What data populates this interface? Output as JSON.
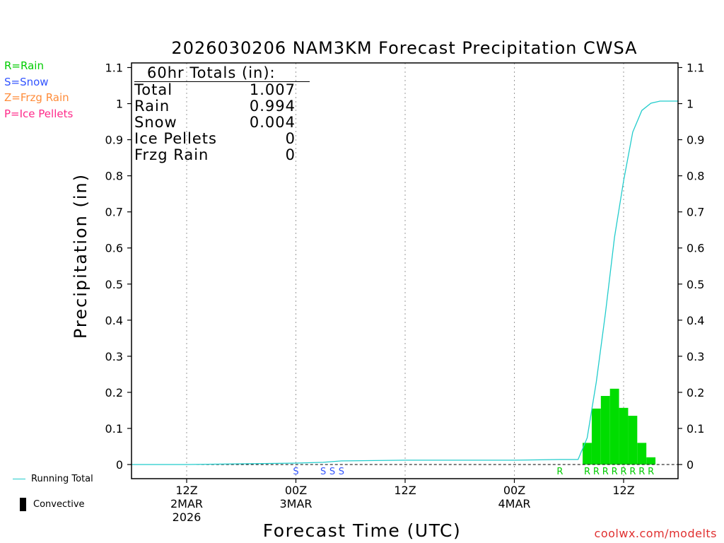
{
  "chart_data": {
    "type": "bar",
    "title": "2026030206 NAM3KM Forecast Precipitation CWSA",
    "xlabel": "Forecast Time (UTC)",
    "ylabel": "Precipitation (in)",
    "ylim": [
      0,
      1.1
    ],
    "yticks": [
      "0",
      "0.1",
      "0.2",
      "0.3",
      "0.4",
      "0.5",
      "0.6",
      "0.7",
      "0.8",
      "0.9",
      "1",
      "1.1"
    ],
    "x_range_hours": [
      -1,
      60
    ],
    "x_ticks": [
      {
        "hour": 6,
        "lines": [
          "12Z",
          "2MAR",
          "2026"
        ]
      },
      {
        "hour": 18,
        "lines": [
          "00Z",
          "3MAR"
        ]
      },
      {
        "hour": 30,
        "lines": [
          "12Z"
        ]
      },
      {
        "hour": 42,
        "lines": [
          "00Z",
          "4MAR"
        ]
      },
      {
        "hour": 54,
        "lines": [
          "12Z"
        ]
      }
    ],
    "bar_hours": [
      50,
      51,
      52,
      53,
      54,
      55,
      56,
      57
    ],
    "bar_values": [
      0.06,
      0.155,
      0.19,
      0.21,
      0.157,
      0.135,
      0.06,
      0.02
    ],
    "running_total": {
      "name": "Running Total",
      "hours": [
        0,
        6,
        12,
        18,
        21,
        23,
        30,
        36,
        42,
        47,
        49,
        50,
        51,
        52,
        53,
        54,
        55,
        56,
        57,
        58,
        60
      ],
      "values": [
        0,
        0,
        0.002,
        0.004,
        0.006,
        0.01,
        0.012,
        0.012,
        0.012,
        0.014,
        0.014,
        0.074,
        0.229,
        0.419,
        0.629,
        0.786,
        0.921,
        0.981,
        1.001,
        1.007,
        1.007
      ]
    },
    "ptype_markers": [
      {
        "hour": 18,
        "letter": "S",
        "type": "snow"
      },
      {
        "hour": 21,
        "letter": "S",
        "type": "snow"
      },
      {
        "hour": 22,
        "letter": "S",
        "type": "snow"
      },
      {
        "hour": 23,
        "letter": "S",
        "type": "snow"
      },
      {
        "hour": 47,
        "letter": "R",
        "type": "rain"
      },
      {
        "hour": 50,
        "letter": "R",
        "type": "rain"
      },
      {
        "hour": 51,
        "letter": "R",
        "type": "rain"
      },
      {
        "hour": 52,
        "letter": "R",
        "type": "rain"
      },
      {
        "hour": 53,
        "letter": "R",
        "type": "rain"
      },
      {
        "hour": 54,
        "letter": "R",
        "type": "rain"
      },
      {
        "hour": 55,
        "letter": "R",
        "type": "rain"
      },
      {
        "hour": 56,
        "letter": "R",
        "type": "rain"
      },
      {
        "hour": 57,
        "letter": "R",
        "type": "rain"
      }
    ],
    "colors": {
      "rain": "#00cc00",
      "snow": "#3355ff",
      "frzg": "#ff8c3a",
      "ice": "#ff2a8a",
      "bar": "#00dd00",
      "running_total": "#22cccc"
    }
  },
  "precip_legend": [
    {
      "label": "R=Rain",
      "color": "#00cc00"
    },
    {
      "label": "S=Snow",
      "color": "#3355ff"
    },
    {
      "label": "Z=Frzg Rain",
      "color": "#ff8c3a"
    },
    {
      "label": "P=Ice Pellets",
      "color": "#ff2a8a"
    }
  ],
  "totals": {
    "header": "60hr Totals (in):",
    "rows": [
      {
        "label": "Total",
        "value": "1.007"
      },
      {
        "label": "Rain",
        "value": "0.994"
      },
      {
        "label": "Snow",
        "value": "0.004"
      },
      {
        "label": "Ice Pellets",
        "value": "0"
      },
      {
        "label": "Frzg Rain",
        "value": "0"
      }
    ]
  },
  "bottom_legend": {
    "running_total": "Running Total",
    "convective": "Convective"
  },
  "watermark": "coolwx.com/modelts"
}
